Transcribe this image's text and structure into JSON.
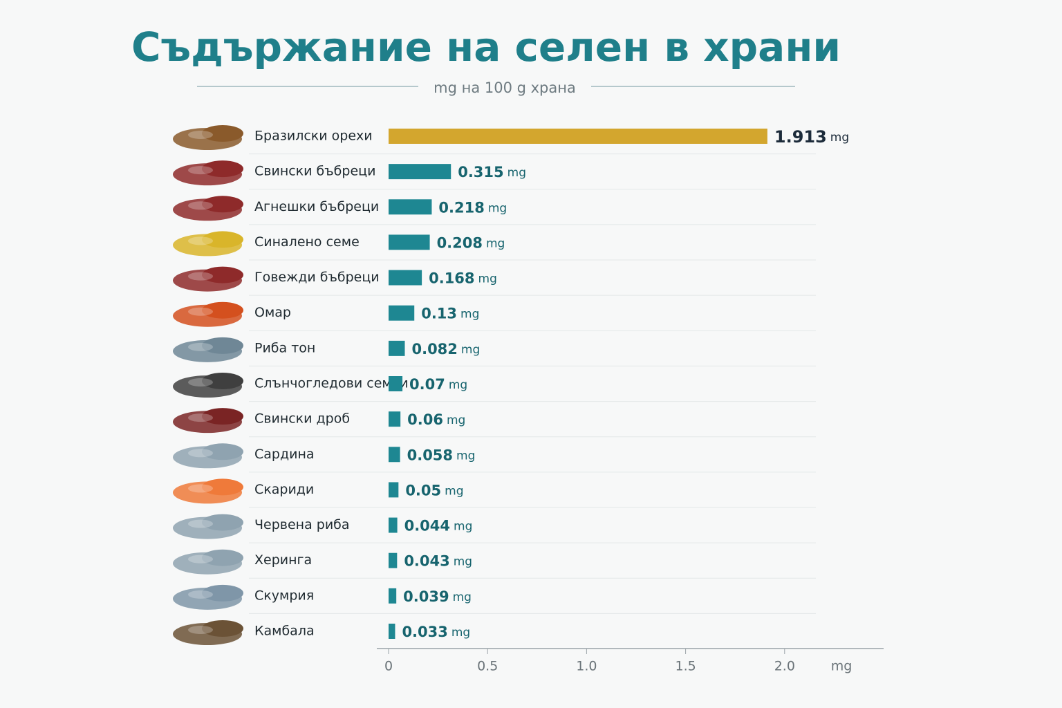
{
  "chart_data": {
    "type": "barh",
    "title": "Съдържание на селен в храни",
    "subtitle": "mg на 100 g храна",
    "unit": "mg",
    "categories": [
      "Бразилски орехи",
      "Свински бъбреци",
      "Агнешки бъбреци",
      "Синалено семе",
      "Говежди бъбреци",
      "Омар",
      "Риба тон",
      "Слънчогледови семки",
      "Свински дроб",
      "Сардина",
      "Скариди",
      "Червена риба",
      "Херинга",
      "Скумрия",
      "Камбала"
    ],
    "values": [
      1.913,
      0.315,
      0.218,
      0.208,
      0.168,
      0.13,
      0.082,
      0.07,
      0.06,
      0.058,
      0.05,
      0.044,
      0.043,
      0.039,
      0.033
    ],
    "colors": [
      "#d3a62e",
      "#1e8792",
      "#1e8792",
      "#1e8792",
      "#1e8792",
      "#1e8792",
      "#1e8792",
      "#1e8792",
      "#1e8792",
      "#1e8792",
      "#1e8792",
      "#1e8792",
      "#1e8792",
      "#1e8792",
      "#1e8792"
    ],
    "xlim": [
      0,
      2.5
    ],
    "xticks": [
      0,
      0.5,
      {
        "value": 1,
        "label": "1.0"
      },
      1.5,
      {
        "value": 2,
        "label": "2.0"
      }
    ]
  }
}
